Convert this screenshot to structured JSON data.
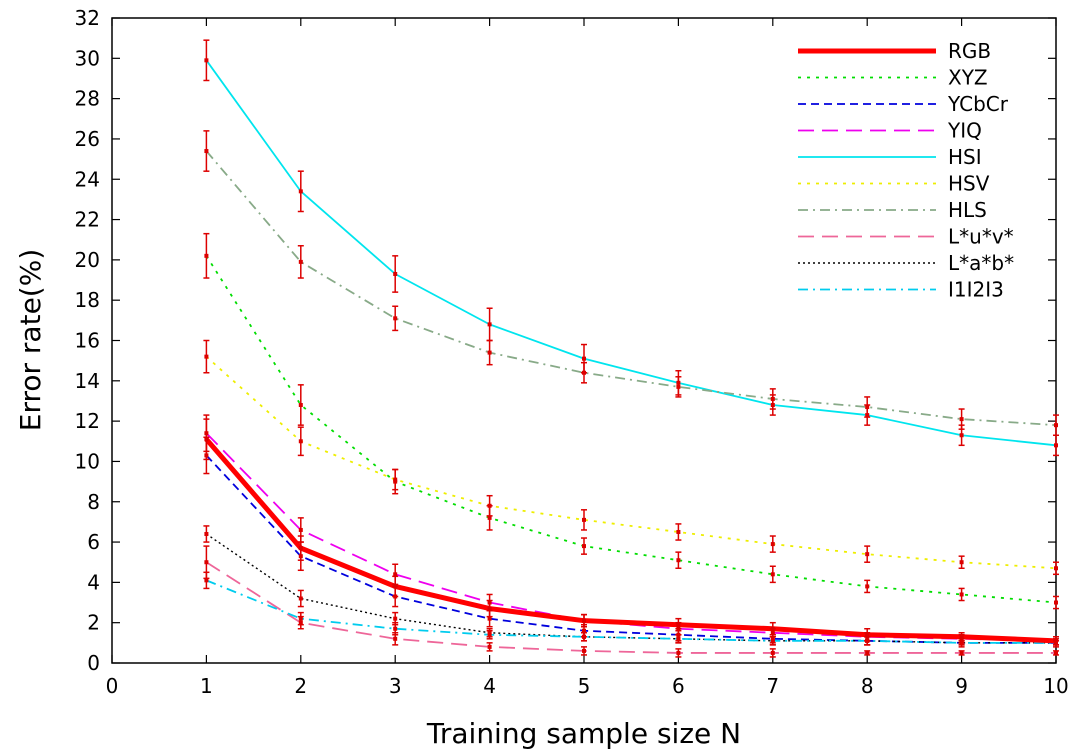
{
  "chart_data": {
    "type": "line",
    "title": "",
    "xlabel": "Training sample size N",
    "ylabel": "Error rate(%)",
    "xlim": [
      0,
      10
    ],
    "ylim": [
      0,
      32
    ],
    "xticks": [
      0,
      1,
      2,
      3,
      4,
      5,
      6,
      7,
      8,
      9,
      10
    ],
    "yticks": [
      0,
      2,
      4,
      6,
      8,
      10,
      12,
      14,
      16,
      18,
      20,
      22,
      24,
      26,
      28,
      30,
      32
    ],
    "grid": false,
    "legend_position": "top-right",
    "x": [
      1,
      2,
      3,
      4,
      5,
      6,
      7,
      8,
      9,
      10
    ],
    "series": [
      {
        "name": "RGB",
        "color": "#ff0000",
        "style": "solid-thick",
        "values": [
          11.1,
          5.7,
          3.8,
          2.7,
          2.1,
          1.9,
          1.7,
          1.4,
          1.3,
          1.1
        ],
        "err": [
          1.0,
          0.6,
          0.5,
          0.4,
          0.3,
          0.3,
          0.3,
          0.3,
          0.2,
          0.2
        ]
      },
      {
        "name": "XYZ",
        "color": "#00dd00",
        "style": "dotted",
        "values": [
          20.2,
          12.8,
          9.0,
          7.2,
          5.8,
          5.1,
          4.4,
          3.8,
          3.4,
          3.0
        ],
        "err": [
          1.1,
          1.0,
          0.6,
          0.6,
          0.4,
          0.4,
          0.4,
          0.3,
          0.3,
          0.3
        ]
      },
      {
        "name": "YCbCr",
        "color": "#0000dd",
        "style": "dashed",
        "values": [
          10.3,
          5.3,
          3.3,
          2.2,
          1.6,
          1.4,
          1.2,
          1.1,
          1.0,
          1.0
        ],
        "err": [
          0.9,
          0.7,
          0.5,
          0.4,
          0.3,
          0.3,
          0.2,
          0.2,
          0.2,
          0.2
        ]
      },
      {
        "name": "YIQ",
        "color": "#ee00ee",
        "style": "longdash",
        "values": [
          11.4,
          6.6,
          4.4,
          3.0,
          2.1,
          1.7,
          1.5,
          1.3,
          1.2,
          1.1
        ],
        "err": [
          0.9,
          0.6,
          0.5,
          0.4,
          0.3,
          0.3,
          0.2,
          0.2,
          0.2,
          0.2
        ]
      },
      {
        "name": "HSI",
        "color": "#00e5ee",
        "style": "solid",
        "values": [
          29.9,
          23.4,
          19.3,
          16.8,
          15.1,
          13.9,
          12.8,
          12.3,
          11.3,
          10.8
        ],
        "err": [
          1.0,
          1.0,
          0.9,
          0.8,
          0.7,
          0.6,
          0.5,
          0.5,
          0.5,
          0.5
        ]
      },
      {
        "name": "HSV",
        "color": "#eeee00",
        "style": "dotted",
        "values": [
          15.2,
          11.0,
          9.1,
          7.8,
          7.1,
          6.5,
          5.9,
          5.4,
          5.0,
          4.7
        ],
        "err": [
          0.8,
          0.7,
          0.5,
          0.5,
          0.5,
          0.4,
          0.4,
          0.4,
          0.3,
          0.3
        ]
      },
      {
        "name": "HLS",
        "color": "#88aa88",
        "style": "dashdot",
        "values": [
          25.4,
          19.9,
          17.1,
          15.4,
          14.4,
          13.7,
          13.1,
          12.7,
          12.1,
          11.8
        ],
        "err": [
          1.0,
          0.8,
          0.6,
          0.6,
          0.5,
          0.5,
          0.5,
          0.5,
          0.5,
          0.5
        ]
      },
      {
        "name": "L*u*v*",
        "color": "#ee6699",
        "style": "longdash",
        "values": [
          5.0,
          2.0,
          1.2,
          0.8,
          0.6,
          0.5,
          0.5,
          0.5,
          0.5,
          0.5
        ],
        "err": [
          0.8,
          0.3,
          0.3,
          0.2,
          0.2,
          0.2,
          0.2,
          0.1,
          0.1,
          0.1
        ]
      },
      {
        "name": "L*a*b*",
        "color": "#000000",
        "style": "dotted-fine",
        "values": [
          6.4,
          3.2,
          2.2,
          1.5,
          1.3,
          1.2,
          1.1,
          1.1,
          1.0,
          1.0
        ],
        "err": [
          0.4,
          0.4,
          0.3,
          0.2,
          0.2,
          0.2,
          0.2,
          0.2,
          0.1,
          0.1
        ]
      },
      {
        "name": "I1I2I3",
        "color": "#00ccee",
        "style": "dashdot",
        "values": [
          4.1,
          2.2,
          1.7,
          1.4,
          1.3,
          1.2,
          1.1,
          1.1,
          1.0,
          1.0
        ],
        "err": [
          0.4,
          0.3,
          0.3,
          0.2,
          0.2,
          0.2,
          0.2,
          0.2,
          0.1,
          0.1
        ]
      }
    ],
    "errorbar_color": "#dd0000"
  }
}
